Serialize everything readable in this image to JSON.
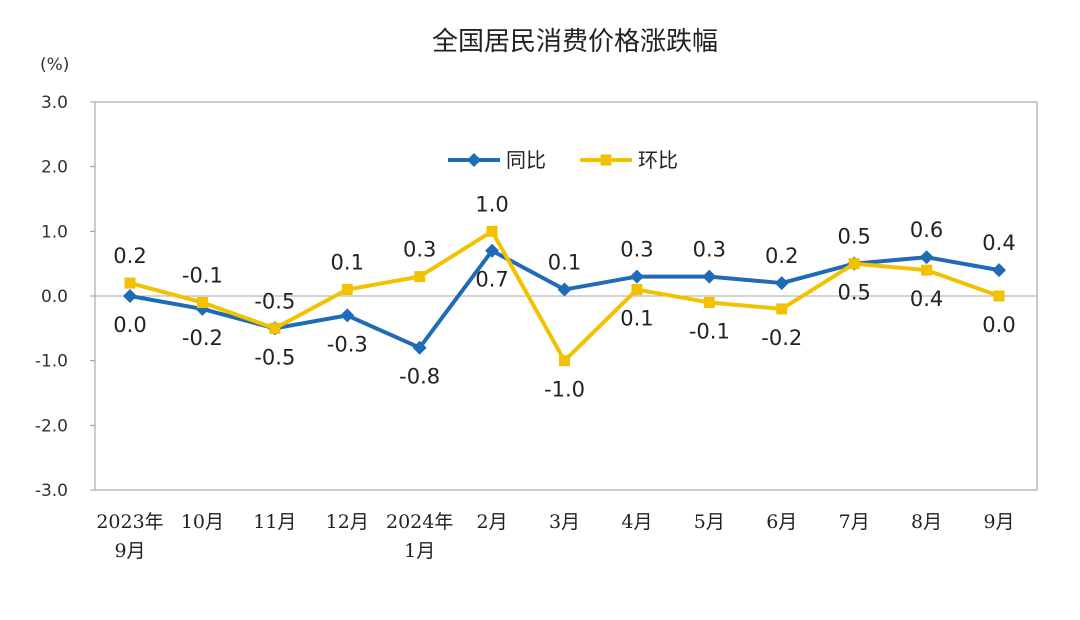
{
  "chart_data": {
    "type": "line",
    "title": "全国居民消费价格涨跌幅",
    "unit": "(%)",
    "categories": [
      [
        "2023年",
        "9月"
      ],
      [
        "10月"
      ],
      [
        "11月"
      ],
      [
        "12月"
      ],
      [
        "2024年",
        "1月"
      ],
      [
        "2月"
      ],
      [
        "3月"
      ],
      [
        "4月"
      ],
      [
        "5月"
      ],
      [
        "6月"
      ],
      [
        "7月"
      ],
      [
        "8月"
      ],
      [
        "9月"
      ]
    ],
    "ylim": [
      -3.0,
      3.0
    ],
    "yticks": [
      "3.0",
      "2.0",
      "1.0",
      "0.0",
      "-1.0",
      "-2.0",
      "-3.0"
    ],
    "ytick_values": [
      3,
      2,
      1,
      0,
      -1,
      -2,
      -3
    ],
    "legend_position": "top-center",
    "grid": false,
    "series": [
      {
        "name": "同比",
        "color": "#1f6bb5",
        "marker": "diamond",
        "values": [
          0.0,
          -0.2,
          -0.5,
          -0.3,
          -0.8,
          0.7,
          0.1,
          0.3,
          0.3,
          0.2,
          0.5,
          0.6,
          0.4
        ],
        "labels": [
          "0.0",
          "-0.2",
          "-0.5",
          "-0.3",
          "-0.8",
          "0.7",
          "0.1",
          "0.3",
          "0.3",
          "0.2",
          "0.5",
          "0.6",
          "0.4"
        ]
      },
      {
        "name": "环比",
        "color": "#f2c200",
        "marker": "square",
        "values": [
          0.2,
          -0.1,
          -0.5,
          0.1,
          0.3,
          1.0,
          -1.0,
          0.1,
          -0.1,
          -0.2,
          0.5,
          0.4,
          0.0
        ],
        "labels": [
          "0.2",
          "-0.1",
          "-0.5",
          "0.1",
          "0.3",
          "1.0",
          "-1.0",
          "0.1",
          "-0.1",
          "-0.2",
          "0.5",
          "0.4",
          "0.0"
        ]
      }
    ]
  }
}
